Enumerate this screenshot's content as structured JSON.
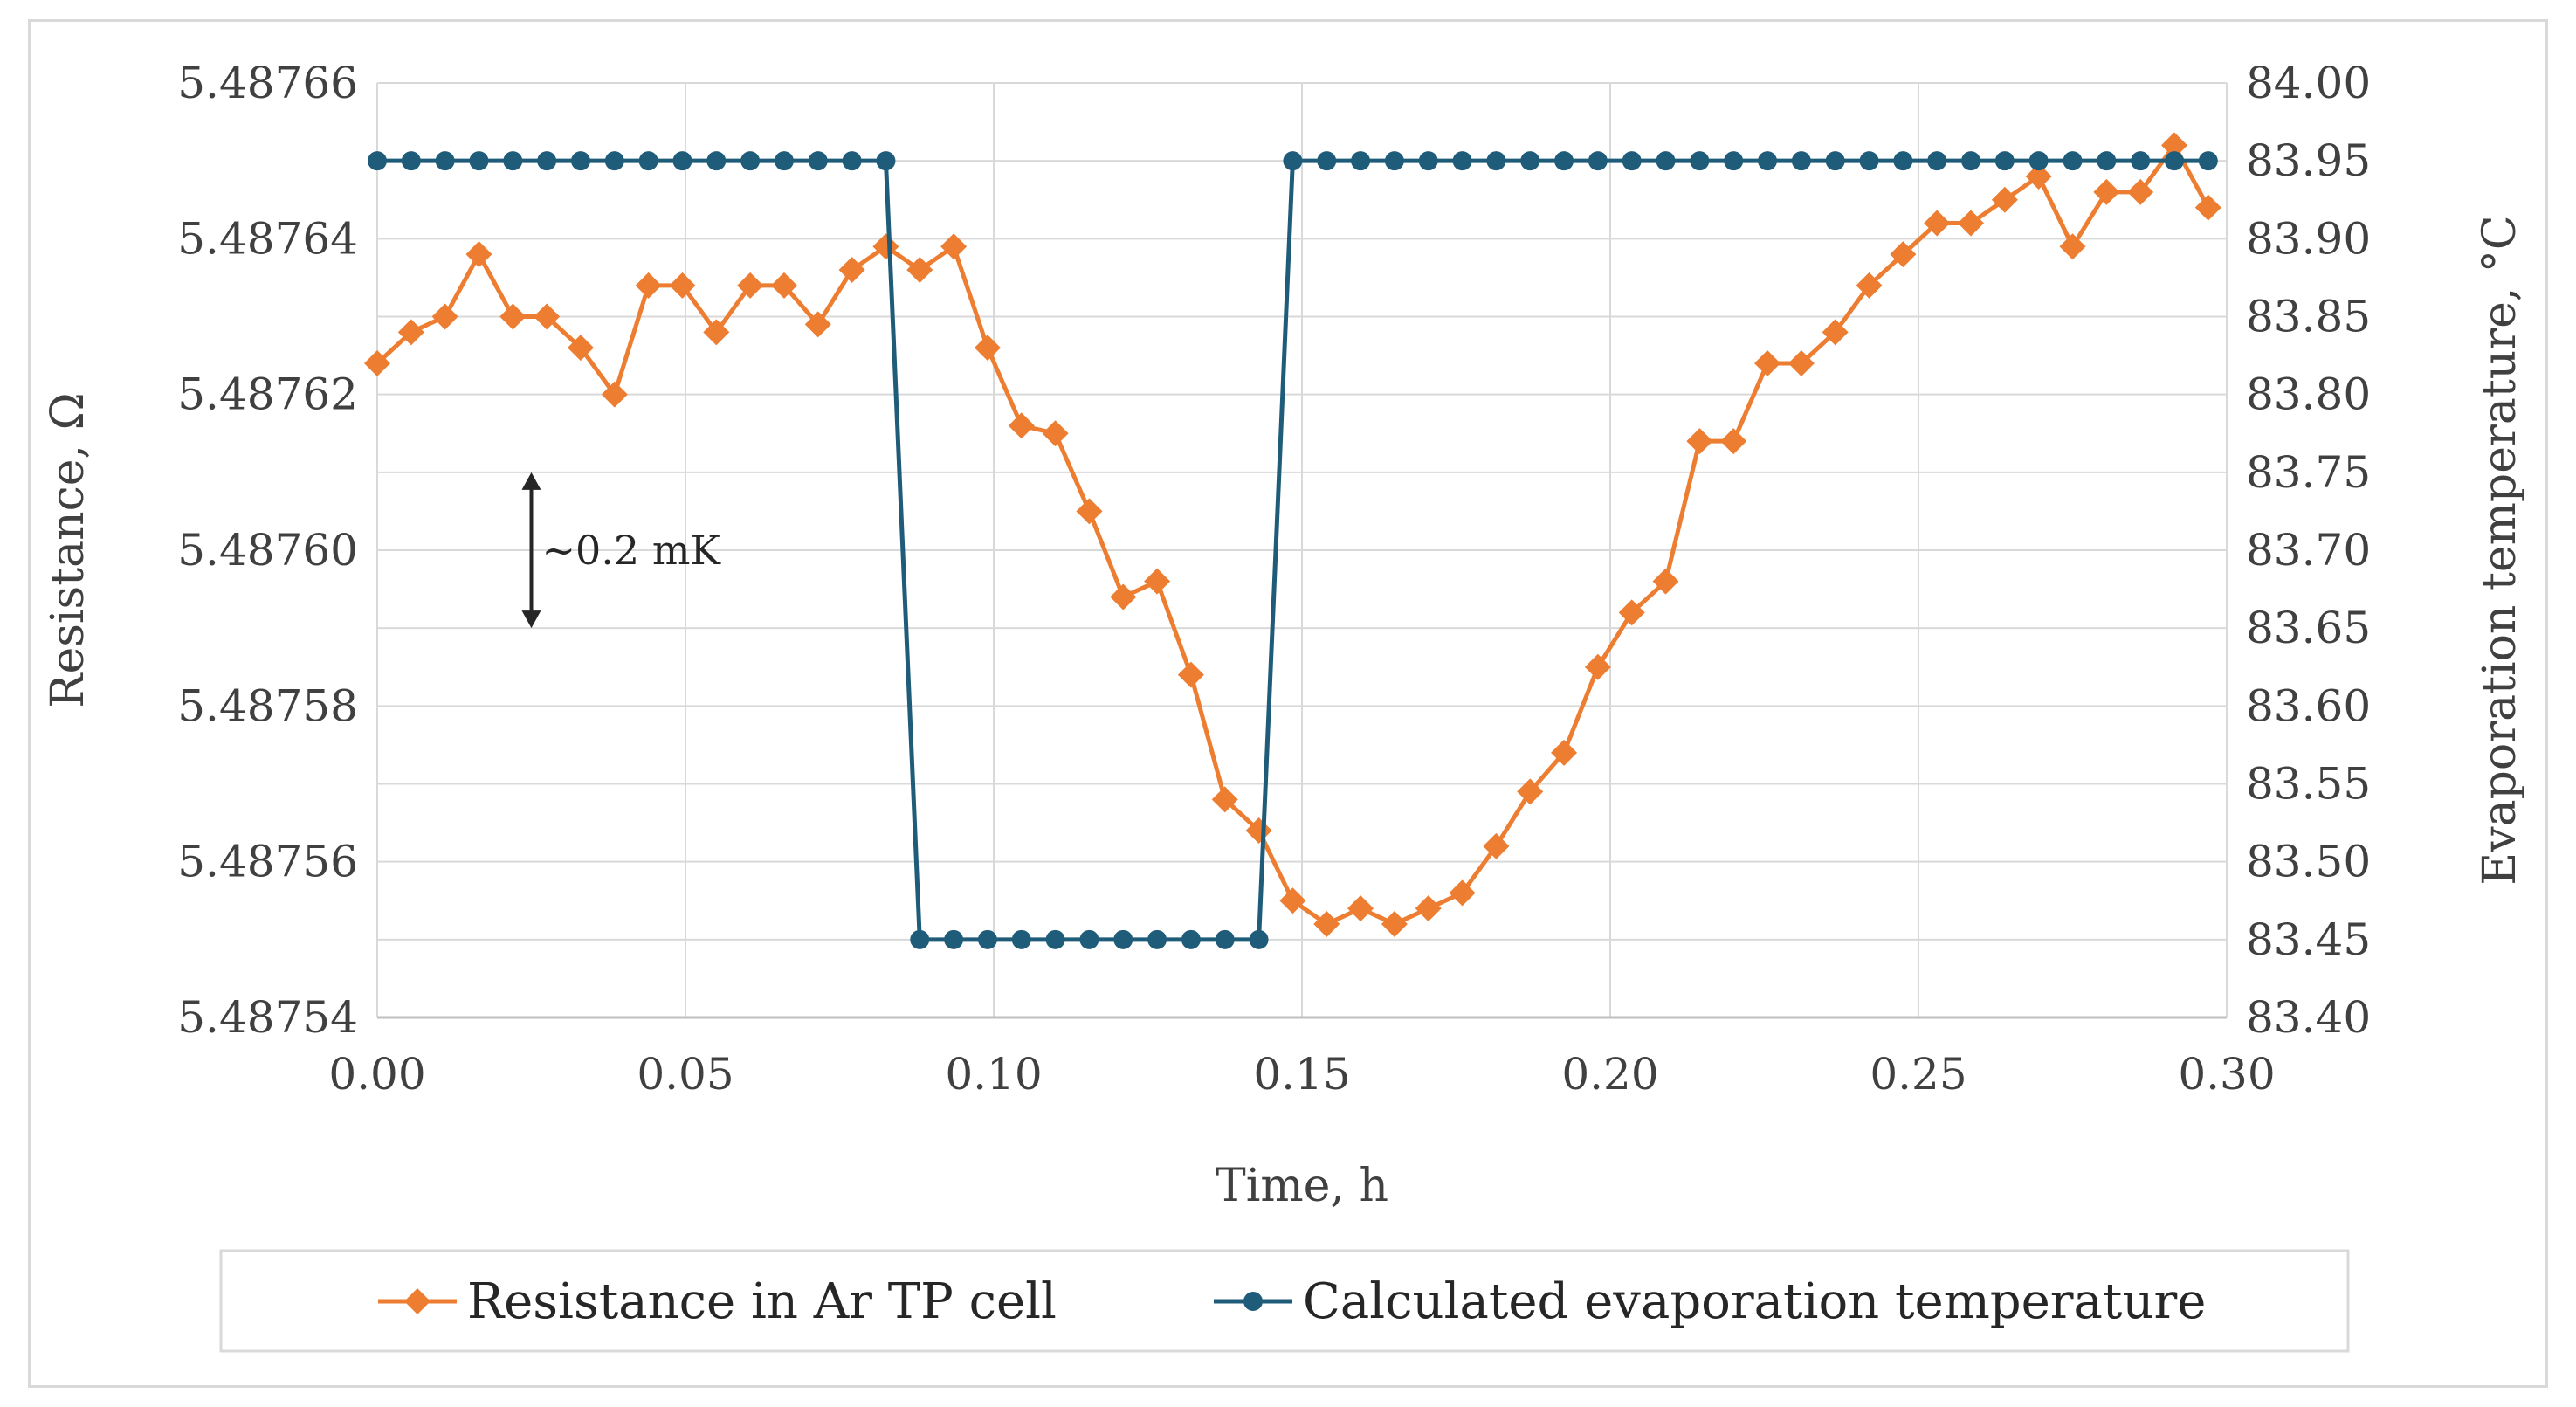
{
  "chart_data": {
    "type": "line",
    "title": "",
    "xlabel": "Time, h",
    "ylabel": "Resistance, Ω",
    "y2label": "Evaporation temperature, °C",
    "xlim": [
      0.0,
      0.3
    ],
    "ylim": [
      5.48754,
      5.48766
    ],
    "y2lim": [
      83.4,
      84.0
    ],
    "grid": true,
    "legend_position": "bottom",
    "x_tick_labels": [
      "0.00",
      "0.05",
      "0.10",
      "0.15",
      "0.20",
      "0.25",
      "0.30"
    ],
    "y_tick_labels": [
      "5.48754",
      "5.48756",
      "5.48758",
      "5.48760",
      "5.48762",
      "5.48764",
      "5.48766"
    ],
    "y2_tick_labels": [
      "83.40",
      "83.45",
      "83.50",
      "83.55",
      "83.60",
      "83.65",
      "83.70",
      "83.75",
      "83.80",
      "83.85",
      "83.90",
      "83.95",
      "84.00"
    ],
    "annotation": "~0.2 mK",
    "annotation_span": [
      5.48759,
      5.48761
    ],
    "annotation_x": 0.025,
    "series": [
      {
        "name": "Resistance in Ar TP cell",
        "axis": "left",
        "color": "#ED7D31",
        "marker": "diamond",
        "x": [
          0.0,
          0.0055,
          0.011,
          0.0165,
          0.022,
          0.0275,
          0.033,
          0.0385,
          0.044,
          0.0495,
          0.055,
          0.0605,
          0.066,
          0.0715,
          0.077,
          0.0825,
          0.088,
          0.0935,
          0.099,
          0.1045,
          0.11,
          0.1155,
          0.121,
          0.1265,
          0.132,
          0.1375,
          0.143,
          0.1485,
          0.154,
          0.1595,
          0.165,
          0.1705,
          0.176,
          0.1815,
          0.187,
          0.1925,
          0.198,
          0.2035,
          0.209,
          0.2145,
          0.22,
          0.2255,
          0.231,
          0.2365,
          0.242,
          0.2475,
          0.253,
          0.2585,
          0.264,
          0.2695,
          0.275,
          0.2805,
          0.286,
          0.2915,
          0.297
        ],
        "values": [
          5.487624,
          5.487628,
          5.48763,
          5.487638,
          5.48763,
          5.48763,
          5.487626,
          5.48762,
          5.487634,
          5.487634,
          5.487628,
          5.487634,
          5.487634,
          5.487629,
          5.487636,
          5.487639,
          5.487636,
          5.487639,
          5.487626,
          5.487616,
          5.487615,
          5.487605,
          5.487594,
          5.487596,
          5.487584,
          5.487568,
          5.487564,
          5.487555,
          5.487552,
          5.487554,
          5.487552,
          5.487554,
          5.487556,
          5.487562,
          5.487569,
          5.487574,
          5.487585,
          5.487592,
          5.487596,
          5.487614,
          5.487614,
          5.487624,
          5.487624,
          5.487628,
          5.487634,
          5.487638,
          5.487642,
          5.487642,
          5.487645,
          5.487648,
          5.487639,
          5.487646,
          5.487646,
          5.487652,
          5.487644
        ]
      },
      {
        "name": "Calculated evaporation temperature",
        "axis": "right",
        "color": "#1F5C7A",
        "marker": "circle",
        "x": [
          0.0,
          0.0055,
          0.011,
          0.0165,
          0.022,
          0.0275,
          0.033,
          0.0385,
          0.044,
          0.0495,
          0.055,
          0.0605,
          0.066,
          0.0715,
          0.077,
          0.0825,
          0.088,
          0.0935,
          0.099,
          0.1045,
          0.11,
          0.1155,
          0.121,
          0.1265,
          0.132,
          0.1375,
          0.143,
          0.1485,
          0.154,
          0.1595,
          0.165,
          0.1705,
          0.176,
          0.1815,
          0.187,
          0.1925,
          0.198,
          0.2035,
          0.209,
          0.2145,
          0.22,
          0.2255,
          0.231,
          0.2365,
          0.242,
          0.2475,
          0.253,
          0.2585,
          0.264,
          0.2695,
          0.275,
          0.2805,
          0.286,
          0.2915,
          0.297
        ],
        "values": [
          83.95,
          83.95,
          83.95,
          83.95,
          83.95,
          83.95,
          83.95,
          83.95,
          83.95,
          83.95,
          83.95,
          83.95,
          83.95,
          83.95,
          83.95,
          83.95,
          83.45,
          83.45,
          83.45,
          83.45,
          83.45,
          83.45,
          83.45,
          83.45,
          83.45,
          83.45,
          83.45,
          83.95,
          83.95,
          83.95,
          83.95,
          83.95,
          83.95,
          83.95,
          83.95,
          83.95,
          83.95,
          83.95,
          83.95,
          83.95,
          83.95,
          83.95,
          83.95,
          83.95,
          83.95,
          83.95,
          83.95,
          83.95,
          83.95,
          83.95,
          83.95,
          83.95,
          83.95,
          83.95,
          83.95
        ]
      }
    ]
  }
}
